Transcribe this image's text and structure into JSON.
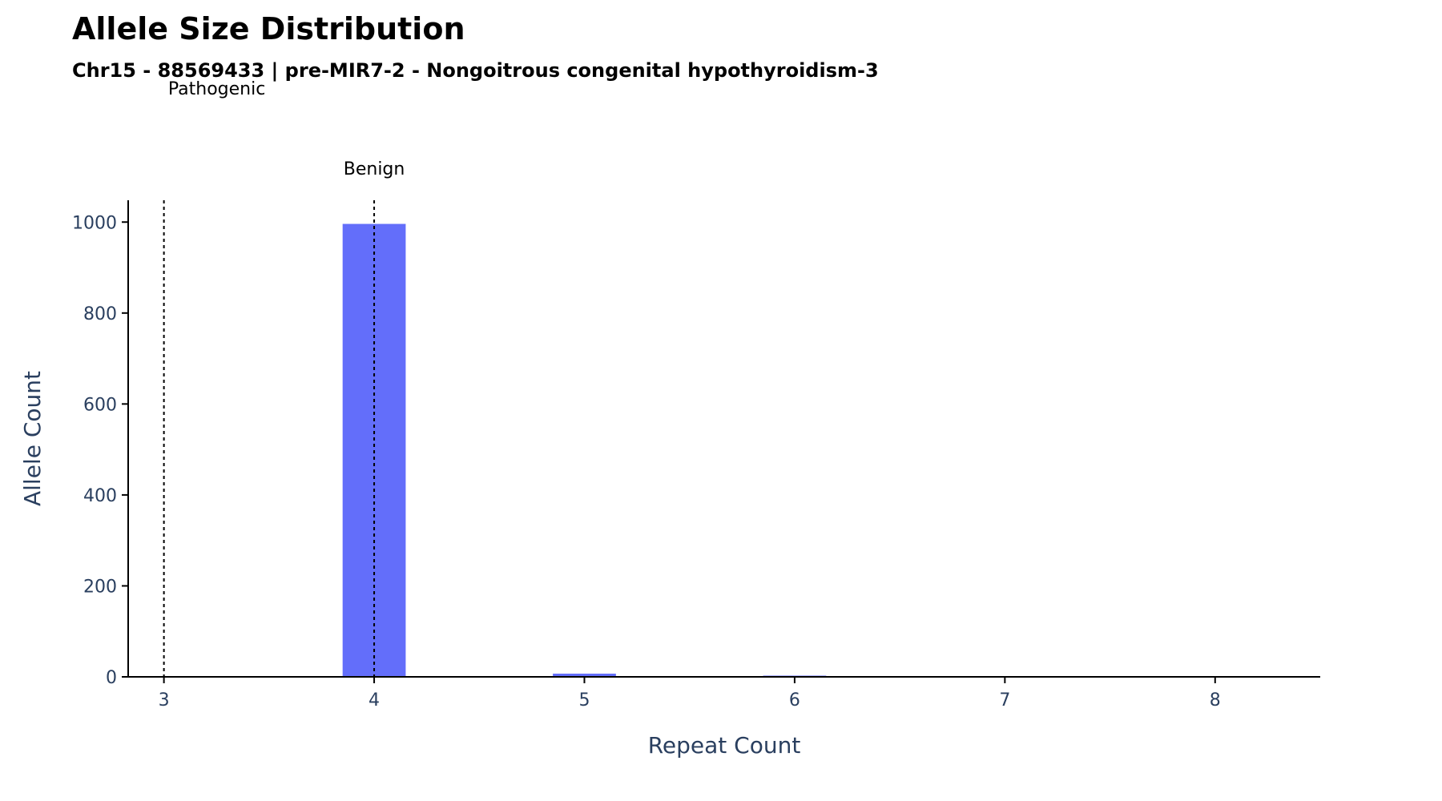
{
  "header": {
    "title": "Allele Size Distribution",
    "subtitle": "Chr15 - 88569433 | pre-MIR7-2 - Nongoitrous congenital hypothyroidism-3"
  },
  "chart_data": {
    "type": "bar",
    "title": "Allele Size Distribution",
    "subtitle": "Chr15 - 88569433 | pre-MIR7-2 - Nongoitrous congenital hypothyroidism-3",
    "xlabel": "Repeat Count",
    "ylabel": "Allele Count",
    "x": [
      4,
      5,
      6
    ],
    "values": [
      996,
      7,
      1
    ],
    "xlim": [
      2.83,
      8.5
    ],
    "ylim": [
      0,
      1048
    ],
    "xticks": [
      3,
      4,
      5,
      6,
      7,
      8
    ],
    "yticks": [
      0,
      200,
      400,
      600,
      800,
      1000
    ],
    "bar_color": "#636efa",
    "grid": false,
    "reference_lines": [
      {
        "x": 3,
        "label": "Pathogenic",
        "style": "dotted"
      },
      {
        "x": 4,
        "label": "Benign",
        "style": "dotted"
      }
    ]
  }
}
